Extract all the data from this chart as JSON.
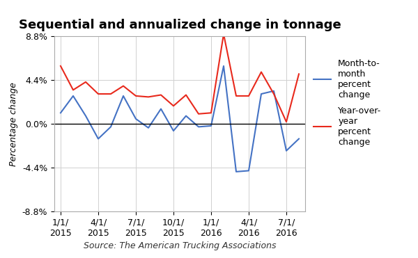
{
  "title": "Sequential and annualized change in tonnage",
  "source_text": "Source: The American Trucking Associations",
  "ylabel": "Percentage change",
  "ylim": [
    -8.8,
    8.8
  ],
  "yticks": [
    -8.8,
    -4.4,
    0.0,
    4.4,
    8.8
  ],
  "ytick_labels": [
    "-8.8%",
    "-4.4%",
    "0.0%",
    "4.4%",
    "8.8%"
  ],
  "xtick_positions": [
    0,
    3,
    6,
    9,
    12,
    15,
    18
  ],
  "xtick_labels": [
    "1/1/\n2015",
    "4/1/\n2015",
    "7/1/\n2015",
    "10/1/\n2015",
    "1/1/\n2016",
    "4/1/\n2016",
    "7/1/\n2016"
  ],
  "blue_label": "Month-to-\nmonth\npercent\nchange",
  "red_label": "Year-over-\nyear\npercent\nchange",
  "blue_color": "#4472C4",
  "red_color": "#E8291C",
  "x_values": [
    0,
    1,
    2,
    3,
    4,
    5,
    6,
    7,
    8,
    9,
    10,
    11,
    12,
    13,
    14,
    15,
    16,
    17,
    18,
    19
  ],
  "blue_data": [
    1.1,
    2.8,
    0.8,
    -1.5,
    -0.3,
    2.8,
    0.5,
    -0.4,
    1.5,
    -0.7,
    0.8,
    -0.3,
    -0.2,
    5.8,
    -4.8,
    -4.7,
    3.0,
    3.3,
    -2.7,
    -1.5
  ],
  "red_data": [
    5.8,
    3.4,
    4.2,
    3.0,
    3.0,
    3.8,
    2.8,
    2.7,
    2.9,
    1.8,
    2.9,
    1.0,
    1.1,
    9.0,
    2.8,
    2.8,
    5.2,
    3.0,
    0.2,
    5.0
  ],
  "background_color": "#ffffff",
  "grid_color": "#d0d0d0",
  "title_fontsize": 13,
  "axis_fontsize": 9,
  "legend_fontsize": 9,
  "source_fontsize": 9
}
